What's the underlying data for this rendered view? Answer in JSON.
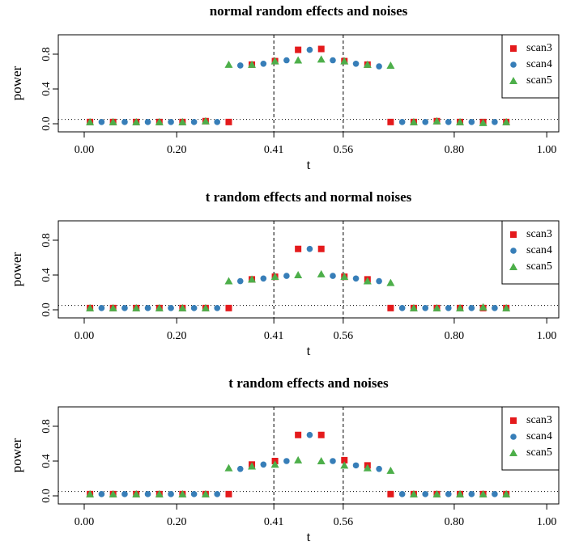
{
  "chart_data": [
    {
      "type": "scatter",
      "title": "normal random effects and noises",
      "xlabel": "t",
      "ylabel": "power",
      "xlim": [
        -0.056,
        1.026
      ],
      "ylim": [
        -0.093,
        1.023
      ],
      "xticks": [
        {
          "value": 0,
          "label": "0.00"
        },
        {
          "value": 0.2,
          "label": "0.20"
        },
        0.41,
        0.56,
        {
          "value": 0.8,
          "label": "0.80"
        },
        {
          "value": 1,
          "label": "1.00"
        }
      ],
      "yticks": [
        {
          "value": 0,
          "label": "0.0"
        },
        0.4,
        0.8
      ],
      "hline": 0.05,
      "vlines": [
        0.41,
        0.56
      ],
      "legend": "topright",
      "series": [
        {
          "name": "scan3",
          "color": "#e41a1c",
          "marker": "square",
          "x": [
            0.0125,
            0.0625,
            0.1125,
            0.1625,
            0.2125,
            0.2625,
            0.3125,
            0.3625,
            0.4125,
            0.4625,
            0.5125,
            0.5625,
            0.6125,
            0.6625,
            0.7125,
            0.7625,
            0.8125,
            0.8625,
            0.9125
          ],
          "values": [
            0.02,
            0.02,
            0.02,
            0.02,
            0.02,
            0.03,
            0.02,
            0.68,
            0.72,
            0.85,
            0.86,
            0.72,
            0.68,
            0.02,
            0.02,
            0.03,
            0.02,
            0.02,
            0.02
          ]
        },
        {
          "name": "scan4",
          "color": "#377eb8",
          "marker": "circle",
          "x": [
            0.0375,
            0.0875,
            0.1375,
            0.1875,
            0.2375,
            0.2875,
            0.3375,
            0.3875,
            0.4375,
            0.4875,
            0.5375,
            0.5875,
            0.6375,
            0.6875,
            0.7375,
            0.7875,
            0.8375,
            0.8875
          ],
          "values": [
            0.02,
            0.02,
            0.02,
            0.02,
            0.02,
            0.02,
            0.67,
            0.69,
            0.73,
            0.85,
            0.73,
            0.69,
            0.66,
            0.02,
            0.02,
            0.02,
            0.02,
            0.02
          ]
        },
        {
          "name": "scan5",
          "color": "#4daf4a",
          "marker": "triangle",
          "x": [
            0.0125,
            0.0625,
            0.1125,
            0.1625,
            0.2125,
            0.2625,
            0.3125,
            0.3625,
            0.4125,
            0.4625,
            0.5125,
            0.5625,
            0.6125,
            0.6625,
            0.7125,
            0.7625,
            0.8125,
            0.8625,
            0.9125
          ],
          "values": [
            0.02,
            0.02,
            0.02,
            0.02,
            0.02,
            0.03,
            0.68,
            0.68,
            0.72,
            0.73,
            0.74,
            0.72,
            0.68,
            0.67,
            0.02,
            0.03,
            0.02,
            0.01,
            0.02
          ]
        }
      ]
    },
    {
      "type": "scatter",
      "title": "t random effects and normal noises",
      "xlabel": "t",
      "ylabel": "power",
      "xlim": [
        -0.056,
        1.026
      ],
      "ylim": [
        -0.093,
        1.023
      ],
      "xticks": [
        {
          "value": 0,
          "label": "0.00"
        },
        {
          "value": 0.2,
          "label": "0.20"
        },
        0.41,
        0.56,
        {
          "value": 0.8,
          "label": "0.80"
        },
        {
          "value": 1,
          "label": "1.00"
        }
      ],
      "yticks": [
        {
          "value": 0,
          "label": "0.0"
        },
        0.4,
        0.8
      ],
      "hline": 0.05,
      "vlines": [
        0.41,
        0.56
      ],
      "legend": "topright",
      "series": [
        {
          "name": "scan3",
          "color": "#e41a1c",
          "marker": "square",
          "x": [
            0.0125,
            0.0625,
            0.1125,
            0.1625,
            0.2125,
            0.2625,
            0.3125,
            0.3625,
            0.4125,
            0.4625,
            0.5125,
            0.5625,
            0.6125,
            0.6625,
            0.7125,
            0.7625,
            0.8125,
            0.8625,
            0.9125
          ],
          "values": [
            0.02,
            0.02,
            0.02,
            0.02,
            0.02,
            0.02,
            0.02,
            0.35,
            0.38,
            0.7,
            0.7,
            0.38,
            0.35,
            0.02,
            0.02,
            0.02,
            0.02,
            0.02,
            0.02
          ]
        },
        {
          "name": "scan4",
          "color": "#377eb8",
          "marker": "circle",
          "x": [
            0.0375,
            0.0875,
            0.1375,
            0.1875,
            0.2375,
            0.2875,
            0.3375,
            0.3875,
            0.4375,
            0.4875,
            0.5375,
            0.5875,
            0.6375,
            0.6875,
            0.7375,
            0.7875,
            0.8375,
            0.8875
          ],
          "values": [
            0.02,
            0.02,
            0.02,
            0.02,
            0.02,
            0.02,
            0.33,
            0.36,
            0.39,
            0.7,
            0.39,
            0.36,
            0.33,
            0.02,
            0.02,
            0.02,
            0.02,
            0.02
          ]
        },
        {
          "name": "scan5",
          "color": "#4daf4a",
          "marker": "triangle",
          "x": [
            0.0125,
            0.0625,
            0.1125,
            0.1625,
            0.2125,
            0.2625,
            0.3125,
            0.3625,
            0.4125,
            0.4625,
            0.5125,
            0.5625,
            0.6125,
            0.6625,
            0.7125,
            0.7625,
            0.8125,
            0.8625,
            0.9125
          ],
          "values": [
            0.02,
            0.02,
            0.02,
            0.02,
            0.02,
            0.02,
            0.33,
            0.35,
            0.38,
            0.4,
            0.41,
            0.38,
            0.33,
            0.31,
            0.02,
            0.02,
            0.02,
            0.03,
            0.02
          ]
        }
      ]
    },
    {
      "type": "scatter",
      "title": "t random effects and noises",
      "xlabel": "t",
      "ylabel": "power",
      "xlim": [
        -0.056,
        1.026
      ],
      "ylim": [
        -0.093,
        1.023
      ],
      "xticks": [
        {
          "value": 0,
          "label": "0.00"
        },
        {
          "value": 0.2,
          "label": "0.20"
        },
        0.41,
        0.56,
        {
          "value": 0.8,
          "label": "0.80"
        },
        {
          "value": 1,
          "label": "1.00"
        }
      ],
      "yticks": [
        {
          "value": 0,
          "label": "0.0"
        },
        0.4,
        0.8
      ],
      "hline": 0.05,
      "vlines": [
        0.41,
        0.56
      ],
      "legend": "topright",
      "series": [
        {
          "name": "scan3",
          "color": "#e41a1c",
          "marker": "square",
          "x": [
            0.0125,
            0.0625,
            0.1125,
            0.1625,
            0.2125,
            0.2625,
            0.3125,
            0.3625,
            0.4125,
            0.4625,
            0.5125,
            0.5625,
            0.6125,
            0.6625,
            0.7125,
            0.7625,
            0.8125,
            0.8625,
            0.9125
          ],
          "values": [
            0.02,
            0.02,
            0.02,
            0.02,
            0.02,
            0.02,
            0.02,
            0.36,
            0.4,
            0.7,
            0.7,
            0.41,
            0.35,
            0.02,
            0.02,
            0.02,
            0.02,
            0.02,
            0.02
          ]
        },
        {
          "name": "scan4",
          "color": "#377eb8",
          "marker": "circle",
          "x": [
            0.0375,
            0.0875,
            0.1375,
            0.1875,
            0.2375,
            0.2875,
            0.3375,
            0.3875,
            0.4375,
            0.4875,
            0.5375,
            0.5875,
            0.6375,
            0.6875,
            0.7375,
            0.7875,
            0.8375,
            0.8875
          ],
          "values": [
            0.02,
            0.02,
            0.02,
            0.02,
            0.02,
            0.02,
            0.31,
            0.36,
            0.4,
            0.7,
            0.4,
            0.35,
            0.31,
            0.02,
            0.02,
            0.02,
            0.02,
            0.02
          ]
        },
        {
          "name": "scan5",
          "color": "#4daf4a",
          "marker": "triangle",
          "x": [
            0.0125,
            0.0625,
            0.1125,
            0.1625,
            0.2125,
            0.2625,
            0.3125,
            0.3625,
            0.4125,
            0.4625,
            0.5125,
            0.5625,
            0.6125,
            0.6625,
            0.7125,
            0.7625,
            0.8125,
            0.8625,
            0.9125
          ],
          "values": [
            0.02,
            0.02,
            0.02,
            0.02,
            0.02,
            0.02,
            0.32,
            0.34,
            0.36,
            0.41,
            0.4,
            0.35,
            0.32,
            0.29,
            0.02,
            0.02,
            0.02,
            0.02,
            0.02
          ]
        }
      ]
    }
  ]
}
